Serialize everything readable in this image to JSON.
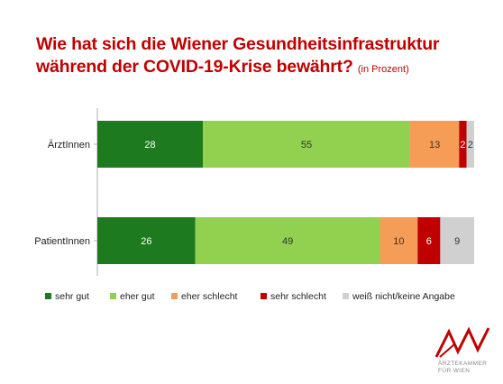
{
  "header": {
    "title_line1": "Wie hat sich die Wiener Gesundheitsinfrastruktur",
    "title_line2": "während der  COVID-19-Krise bewährt?",
    "subtitle": "(in Prozent)"
  },
  "logo": {
    "line1": "ÄRZTEKAMMER",
    "line2": "FÜR WIEN",
    "color": "#c00000"
  },
  "chart_data": {
    "type": "bar",
    "orientation": "horizontal",
    "stacked": true,
    "categories": [
      "ÄrztInnen",
      "PatientInnen"
    ],
    "series": [
      {
        "name": "sehr gut",
        "values": [
          28,
          26
        ],
        "color": "#1e7a1e",
        "label_color": "#ffffff"
      },
      {
        "name": "eher gut",
        "values": [
          55,
          49
        ],
        "color": "#92d050",
        "label_color": "#333333"
      },
      {
        "name": "eher schlecht",
        "values": [
          13,
          10
        ],
        "color": "#f59d56",
        "label_color": "#333333"
      },
      {
        "name": "sehr schlecht",
        "values": [
          2,
          6
        ],
        "color": "#c00000",
        "label_color": "#ffffff"
      },
      {
        "name": "weiß nicht/keine Angabe",
        "values": [
          2,
          9
        ],
        "color": "#d0d0d0",
        "label_color": "#333333"
      }
    ],
    "xlim": [
      0,
      100
    ],
    "unit": "Prozent",
    "legend": "bottom",
    "grid": false
  }
}
